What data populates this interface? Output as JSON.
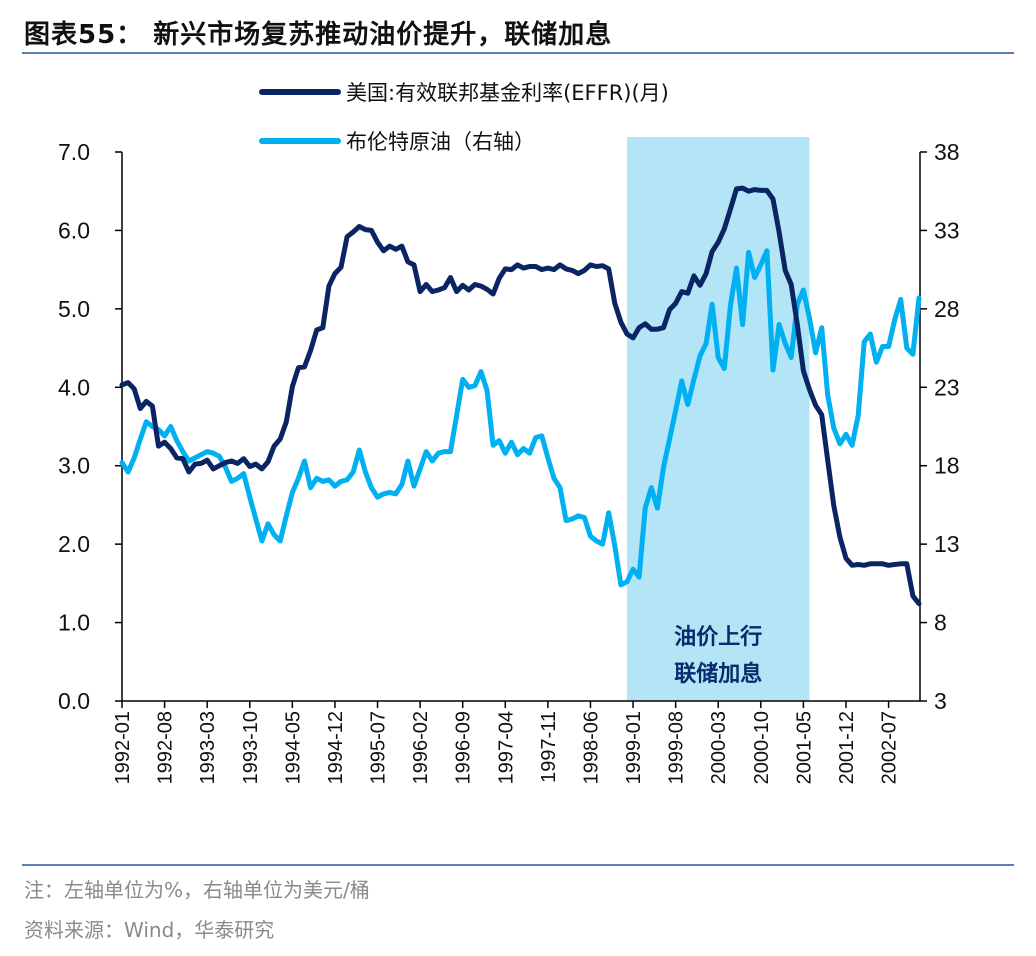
{
  "title": "图表55：  新兴市场复苏推动油价提升，联储加息",
  "footer": {
    "note": "注：左轴单位为%，右轴单位为美元/桶",
    "source": "资料来源：Wind，华泰研究"
  },
  "chart_data": {
    "type": "line",
    "title": "图表55：  新兴市场复苏推动油价提升，联储加息",
    "x_start": "1992-01",
    "x_end": "2002-12",
    "x_frequency": "monthly",
    "x_tick_labels": [
      "1992-01",
      "1992-08",
      "1993-03",
      "1993-10",
      "1994-05",
      "1994-12",
      "1995-07",
      "1996-02",
      "1996-09",
      "1997-04",
      "1997-11",
      "1998-06",
      "1999-01",
      "1999-08",
      "2000-03",
      "2000-10",
      "2001-05",
      "2001-12",
      "2002-07"
    ],
    "y_left": {
      "range": [
        0,
        7
      ],
      "ticks": [
        "0.0",
        "1.0",
        "2.0",
        "3.0",
        "4.0",
        "5.0",
        "6.0",
        "7.0"
      ]
    },
    "y_right": {
      "range": [
        3,
        38
      ],
      "ticks": [
        "3",
        "8",
        "13",
        "18",
        "23",
        "28",
        "33",
        "38"
      ]
    },
    "grid": false,
    "legend_position": "top",
    "series": [
      {
        "name": "美国:有效联邦基金利率(EFFR)(月)",
        "axis": "left",
        "color": "#0b2463",
        "values": [
          4.03,
          4.06,
          3.98,
          3.73,
          3.82,
          3.76,
          3.25,
          3.3,
          3.22,
          3.1,
          3.09,
          2.92,
          3.02,
          3.03,
          3.07,
          2.96,
          3.0,
          3.04,
          3.06,
          3.03,
          3.09,
          2.99,
          3.02,
          2.96,
          3.05,
          3.25,
          3.34,
          3.56,
          4.01,
          4.25,
          4.26,
          4.47,
          4.73,
          4.76,
          5.29,
          5.45,
          5.53,
          5.92,
          5.98,
          6.05,
          6.01,
          6.0,
          5.85,
          5.74,
          5.8,
          5.76,
          5.8,
          5.6,
          5.56,
          5.22,
          5.31,
          5.22,
          5.24,
          5.27,
          5.4,
          5.22,
          5.3,
          5.24,
          5.31,
          5.29,
          5.25,
          5.19,
          5.39,
          5.51,
          5.5,
          5.56,
          5.52,
          5.54,
          5.54,
          5.5,
          5.52,
          5.5,
          5.56,
          5.51,
          5.49,
          5.45,
          5.49,
          5.56,
          5.54,
          5.55,
          5.51,
          5.07,
          4.83,
          4.68,
          4.63,
          4.76,
          4.81,
          4.74,
          4.74,
          4.76,
          4.99,
          5.07,
          5.22,
          5.2,
          5.42,
          5.3,
          5.45,
          5.73,
          5.85,
          6.02,
          6.27,
          6.53,
          6.54,
          6.5,
          6.52,
          6.51,
          6.51,
          6.4,
          5.98,
          5.49,
          5.31,
          4.8,
          4.21,
          3.97,
          3.77,
          3.65,
          3.07,
          2.49,
          2.09,
          1.82,
          1.73,
          1.74,
          1.73,
          1.75,
          1.75,
          1.75,
          1.73,
          1.74,
          1.75,
          1.75,
          1.34,
          1.24
        ]
      },
      {
        "name": "布伦特原油（右轴）",
        "axis": "right",
        "color": "#00b0f0",
        "values": [
          18.2,
          17.6,
          18.5,
          19.7,
          20.8,
          20.5,
          20.3,
          19.9,
          20.5,
          19.6,
          18.9,
          18.3,
          18.5,
          18.7,
          18.9,
          18.8,
          18.6,
          17.9,
          17.0,
          17.2,
          17.5,
          16.0,
          14.6,
          13.2,
          14.3,
          13.6,
          13.2,
          14.8,
          16.3,
          17.2,
          18.3,
          16.6,
          17.2,
          17.0,
          17.1,
          16.7,
          17.0,
          17.1,
          17.6,
          19.0,
          17.6,
          16.6,
          16.0,
          16.2,
          16.3,
          16.2,
          16.8,
          18.3,
          16.7,
          17.8,
          18.9,
          18.3,
          18.8,
          18.9,
          18.9,
          21.2,
          23.5,
          23.0,
          23.1,
          24.0,
          22.8,
          19.3,
          19.6,
          18.8,
          19.5,
          18.7,
          19.1,
          18.8,
          19.8,
          19.9,
          18.5,
          17.2,
          16.6,
          14.5,
          14.6,
          14.8,
          14.7,
          13.5,
          13.2,
          13.0,
          15.0,
          12.9,
          10.4,
          10.6,
          11.4,
          10.9,
          15.3,
          16.6,
          15.3,
          17.9,
          19.7,
          21.5,
          23.4,
          21.9,
          23.5,
          25.0,
          25.8,
          28.3,
          24.9,
          24.2,
          28.2,
          30.6,
          27.0,
          31.6,
          30.0,
          30.8,
          31.7,
          24.1,
          27.0,
          25.8,
          24.9,
          28.3,
          29.2,
          27.4,
          25.2,
          26.8,
          22.5,
          20.4,
          19.4,
          20.0,
          19.3,
          21.2,
          25.9,
          26.4,
          24.6,
          25.6,
          25.6,
          27.3,
          28.6,
          25.5,
          25.1,
          28.7
        ]
      }
    ],
    "shaded_region": {
      "start": "1998-12",
      "end": "2001-06",
      "color": "#b3e5f7",
      "label_lines": [
        "油价上行",
        "联储加息"
      ]
    }
  }
}
